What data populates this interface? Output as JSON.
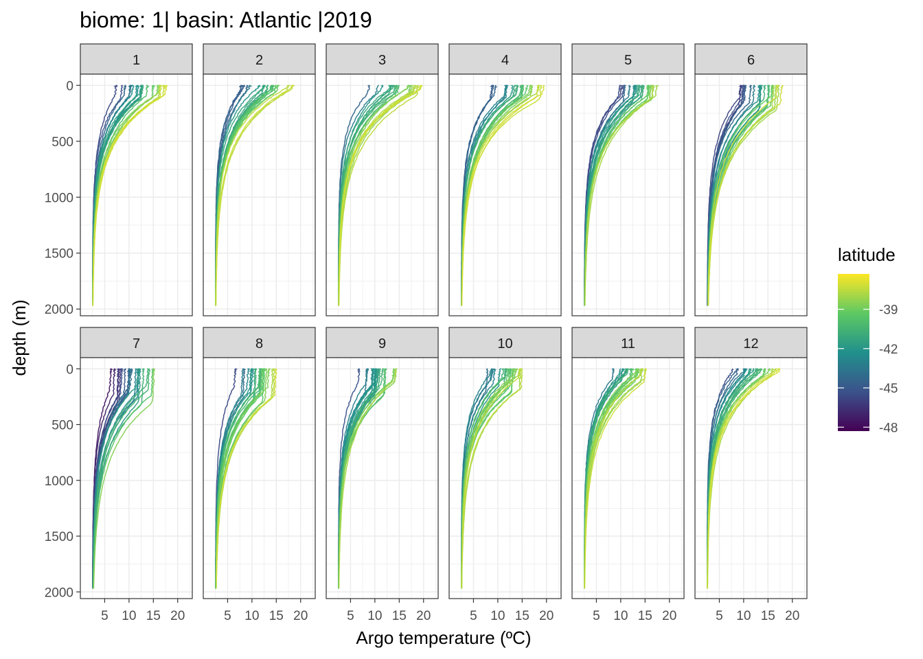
{
  "chart_data": {
    "type": "line",
    "title": "biome: 1| basin: Atlantic |2019",
    "xlabel": "Argo temperature (ºC)",
    "ylabel": "depth (m)",
    "facet_by": "month",
    "panels": [
      "1",
      "2",
      "3",
      "4",
      "5",
      "6",
      "7",
      "8",
      "9",
      "10",
      "11",
      "12"
    ],
    "x_ticks": [
      5,
      10,
      15,
      20
    ],
    "x_range": [
      0,
      23
    ],
    "y_ticks": [
      0,
      500,
      1000,
      1500,
      2000
    ],
    "y_range": [
      2060,
      -100
    ],
    "y_reversed": true,
    "grid": true,
    "legend": {
      "title": "latitude",
      "placement": "right",
      "type": "colorbar",
      "ticks": [
        -39,
        -42,
        -45,
        -48
      ],
      "range": [
        -48.3,
        -36.3
      ],
      "palette": [
        "#440154",
        "#3b528b",
        "#21908c",
        "#5dc963",
        "#fde725"
      ]
    },
    "panel_styles": {
      "1": {
        "surface_min": 7.5,
        "surface_max": 17.5,
        "mld_min": 60,
        "mld_max": 120,
        "thermo": [
          0.55,
          0.7
        ],
        "lat_min": -46,
        "lat_max": -37
      },
      "2": {
        "surface_min": 6.5,
        "surface_max": 18.5,
        "mld_min": 20,
        "mld_max": 70,
        "thermo": [
          0.5,
          0.7
        ],
        "lat_min": -46,
        "lat_max": -37
      },
      "3": {
        "surface_min": 8.0,
        "surface_max": 19.5,
        "mld_min": 20,
        "mld_max": 100,
        "thermo": [
          0.45,
          0.75
        ],
        "lat_min": -45,
        "lat_max": -37
      },
      "4": {
        "surface_min": 9.0,
        "surface_max": 19.0,
        "mld_min": 60,
        "mld_max": 130,
        "thermo": [
          0.55,
          0.8
        ],
        "lat_min": -45,
        "lat_max": -37
      },
      "5": {
        "surface_min": 9.0,
        "surface_max": 18.0,
        "mld_min": 80,
        "mld_max": 150,
        "thermo": [
          0.55,
          0.85
        ],
        "lat_min": -47,
        "lat_max": -37
      },
      "6": {
        "surface_min": 8.0,
        "surface_max": 17.5,
        "mld_min": 100,
        "mld_max": 220,
        "thermo": [
          0.6,
          0.95
        ],
        "lat_min": -48,
        "lat_max": -37
      },
      "7": {
        "surface_min": 6.5,
        "surface_max": 16.0,
        "mld_min": 150,
        "mld_max": 320,
        "thermo": [
          0.6,
          0.9
        ],
        "lat_min": -48,
        "lat_max": -38
      },
      "8": {
        "surface_min": 6.0,
        "surface_max": 15.0,
        "mld_min": 150,
        "mld_max": 300,
        "thermo": [
          0.55,
          0.85
        ],
        "lat_min": -46,
        "lat_max": -37
      },
      "9": {
        "surface_min": 6.0,
        "surface_max": 15.5,
        "mld_min": 100,
        "mld_max": 280,
        "thermo": [
          0.5,
          0.8
        ],
        "lat_min": -46,
        "lat_max": -37
      },
      "10": {
        "surface_min": 5.5,
        "surface_max": 15.5,
        "mld_min": 40,
        "mld_max": 220,
        "thermo": [
          0.45,
          0.75
        ],
        "lat_min": -46,
        "lat_max": -37
      },
      "11": {
        "surface_min": 8.5,
        "surface_max": 15.5,
        "mld_min": 20,
        "mld_max": 120,
        "thermo": [
          0.5,
          0.7
        ],
        "lat_min": -44,
        "lat_max": -37
      },
      "12": {
        "surface_min": 7.0,
        "surface_max": 17.0,
        "mld_min": 20,
        "mld_max": 80,
        "thermo": [
          0.45,
          0.7
        ],
        "lat_min": -46,
        "lat_max": -37
      }
    },
    "deep_temperature": 2.5,
    "max_depth": 1970,
    "profiles_per_panel": 22
  }
}
